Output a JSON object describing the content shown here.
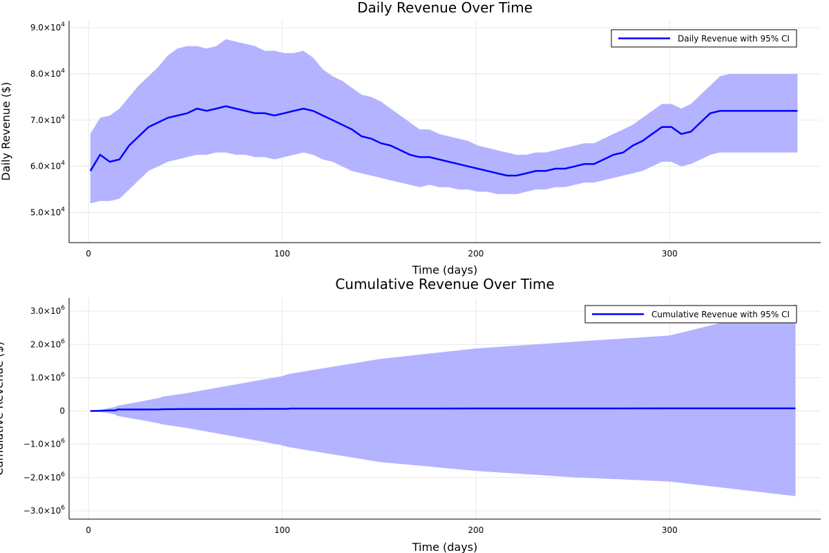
{
  "chart_data": [
    {
      "type": "line",
      "title": "Daily Revenue Over Time",
      "xlabel": "Time (days)",
      "ylabel": "Daily Revenue ($)",
      "xlim": [
        -10,
        378
      ],
      "ylim": [
        43500,
        91500
      ],
      "xticks": [
        0,
        100,
        200,
        300
      ],
      "xtick_labels": [
        "0",
        "100",
        "200",
        "300"
      ],
      "yticks": [
        50000,
        60000,
        70000,
        80000,
        90000
      ],
      "ytick_labels": [
        {
          "mant": "5.0×10",
          "exp": "4"
        },
        {
          "mant": "6.0×10",
          "exp": "4"
        },
        {
          "mant": "7.0×10",
          "exp": "4"
        },
        {
          "mant": "8.0×10",
          "exp": "4"
        },
        {
          "mant": "9.0×10",
          "exp": "4"
        }
      ],
      "grid": true,
      "legend": {
        "position": "top-right",
        "label": "Daily Revenue with 95% CI"
      },
      "colors": {
        "line": "#0000ff",
        "band": "#b3b3ff"
      },
      "series": [
        {
          "name": "Daily Revenue with 95% CI",
          "x_start": 1,
          "x_step": 5,
          "values": [
            59000,
            62500,
            61000,
            61500,
            64500,
            66500,
            68500,
            69500,
            70500,
            71000,
            71500,
            72500,
            72000,
            72500,
            73000,
            72500,
            72000,
            71500,
            71500,
            71000,
            71500,
            72000,
            72500,
            72000,
            71000,
            70000,
            69000,
            68000,
            66500,
            66000,
            65000,
            64500,
            63500,
            62500,
            62000,
            62000,
            61500,
            61000,
            60500,
            60000,
            59500,
            59000,
            58500,
            58000,
            58000,
            58500,
            59000,
            59000,
            59500,
            59500,
            60000,
            60500,
            60500,
            61500,
            62500,
            63000,
            64500,
            65500,
            67000,
            68500,
            68500,
            67000,
            67500,
            69500,
            71500,
            72000,
            72000,
            72000,
            72000,
            72000,
            72000,
            72000,
            72000,
            72000
          ],
          "ci_lower": [
            52000,
            52500,
            52500,
            53000,
            55000,
            57000,
            59000,
            60000,
            61000,
            61500,
            62000,
            62500,
            62500,
            63000,
            63000,
            62500,
            62500,
            62000,
            62000,
            61500,
            62000,
            62500,
            63000,
            62500,
            61500,
            61000,
            60000,
            59000,
            58500,
            58000,
            57500,
            57000,
            56500,
            56000,
            55500,
            56000,
            55500,
            55500,
            55000,
            55000,
            54500,
            54500,
            54000,
            54000,
            54000,
            54500,
            55000,
            55000,
            55500,
            55500,
            56000,
            56500,
            56500,
            57000,
            57500,
            58000,
            58500,
            59000,
            60000,
            61000,
            61000,
            60000,
            60500,
            61500,
            62500,
            63000,
            63000,
            63000,
            63000,
            63000,
            63000,
            63000,
            63000,
            63000
          ],
          "ci_upper": [
            67000,
            70500,
            71000,
            72500,
            75000,
            77500,
            79500,
            81500,
            84000,
            85500,
            86000,
            86000,
            85500,
            86000,
            87500,
            87000,
            86500,
            86000,
            85000,
            85000,
            84500,
            84500,
            85000,
            83500,
            81000,
            79500,
            78500,
            77000,
            75500,
            75000,
            74000,
            72500,
            71000,
            69500,
            68000,
            68000,
            67000,
            66500,
            66000,
            65500,
            64500,
            64000,
            63500,
            63000,
            62500,
            62500,
            63000,
            63000,
            63500,
            64000,
            64500,
            65000,
            65000,
            66000,
            67000,
            68000,
            69000,
            70500,
            72000,
            73500,
            73500,
            72500,
            73500,
            75500,
            77500,
            79500,
            80000,
            80000,
            80000,
            80000,
            80000,
            80000,
            80000,
            80000
          ]
        }
      ]
    },
    {
      "type": "line",
      "title": "Cumulative Revenue Over Time",
      "xlabel": "Time (days)",
      "ylabel": "Cumulative Revenue ($)",
      "xlim": [
        -10,
        378
      ],
      "ylim": [
        -3250000,
        3400000
      ],
      "xticks": [
        0,
        100,
        200,
        300
      ],
      "xtick_labels": [
        "0",
        "100",
        "200",
        "300"
      ],
      "yticks": [
        -3000000,
        -2000000,
        -1000000,
        0,
        1000000,
        2000000,
        3000000
      ],
      "ytick_labels": [
        {
          "mant": "−3.0×10",
          "exp": "6"
        },
        {
          "mant": "−2.0×10",
          "exp": "6"
        },
        {
          "mant": "−1.0×10",
          "exp": "6"
        },
        {
          "mant": "0",
          "exp": ""
        },
        {
          "mant": "1.0×10",
          "exp": "6"
        },
        {
          "mant": "2.0×10",
          "exp": "6"
        },
        {
          "mant": "3.0×10",
          "exp": "6"
        }
      ],
      "grid": true,
      "legend": {
        "position": "top-right",
        "label": "Cumulative Revenue with 95% CI"
      },
      "colors": {
        "line": "#0000ff",
        "band": "#b3b3ff"
      },
      "series": [
        {
          "name": "Cumulative Revenue with 95% CI",
          "x": [
            1,
            5,
            10,
            14,
            15,
            20,
            30,
            37,
            38,
            50,
            75,
            100,
            103,
            104,
            150,
            200,
            250,
            300,
            365
          ],
          "values": [
            0,
            5000,
            15000,
            20000,
            45000,
            45000,
            45000,
            47000,
            55000,
            60000,
            62000,
            64000,
            66000,
            75000,
            76000,
            77000,
            78000,
            79000,
            80000
          ],
          "ci_lower": [
            0,
            -20000,
            -60000,
            -110000,
            -150000,
            -200000,
            -300000,
            -380000,
            -400000,
            -500000,
            -760000,
            -1030000,
            -1080000,
            -1090000,
            -1530000,
            -1800000,
            -1990000,
            -2120000,
            -2560000
          ],
          "ci_upper": [
            0,
            30000,
            80000,
            130000,
            160000,
            210000,
            320000,
            400000,
            430000,
            530000,
            790000,
            1050000,
            1110000,
            1120000,
            1560000,
            1880000,
            2080000,
            2270000,
            3200000
          ]
        }
      ]
    }
  ]
}
